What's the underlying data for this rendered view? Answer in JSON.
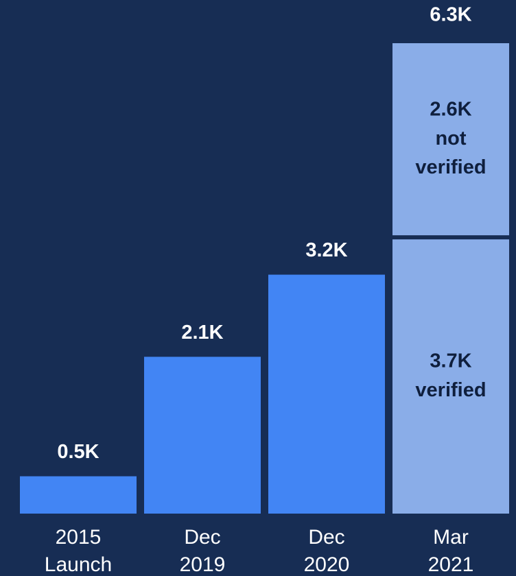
{
  "chart_data": {
    "type": "bar",
    "categories": [
      "2015 Launch",
      "Dec 2019",
      "Dec 2020",
      "Mar 2021"
    ],
    "series": [
      {
        "name": "verified",
        "values": [
          0.5,
          2.1,
          3.2,
          3.7
        ],
        "value_labels": [
          "0.5K",
          "2.1K",
          "3.2K",
          "3.7K"
        ]
      },
      {
        "name": "not verified",
        "values": [
          null,
          null,
          null,
          2.6
        ],
        "value_labels": [
          null,
          null,
          null,
          "2.6K"
        ]
      }
    ],
    "totals": [
      null,
      null,
      null,
      6.3
    ],
    "total_labels": [
      null,
      null,
      null,
      "6.3K"
    ],
    "colors": [
      "#4285f4",
      "#4285f4",
      "#4285f4",
      "#8aade8"
    ],
    "ylim": [
      0,
      6.3
    ]
  }
}
